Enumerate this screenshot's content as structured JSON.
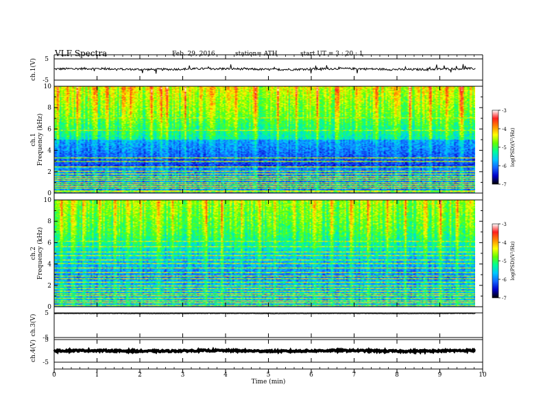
{
  "header": {
    "title": "VLF  Spectra",
    "date": "Feb. 29, 2016",
    "station": "station= ATH",
    "start": "start  UT  =   3  : 20 : 1"
  },
  "colors": {
    "trace": "#000000",
    "axis": "#000000",
    "colormap": [
      "#000000",
      "#0000c8",
      "#1464ff",
      "#00c8ff",
      "#00ff96",
      "#64ff00",
      "#ffff00",
      "#ff8c00",
      "#ff1e1e",
      "#ffffff"
    ]
  },
  "chart_data": [
    {
      "type": "line",
      "name": "ch1-waveform",
      "ylabel": "ch.1(V)",
      "yticks": [
        "5",
        "-5"
      ],
      "ylim": [
        -5,
        5
      ],
      "x_range": [
        0,
        9.83
      ],
      "baseline_v": 0.2,
      "noise_amplitude_v": 0.5,
      "spike_amplitude_v": 1.8
    },
    {
      "type": "heatmap",
      "name": "ch1-spectrogram",
      "ylabel_channel": "ch.1",
      "ylabel": "Frequency  (kHz)",
      "ylim": [
        0,
        10
      ],
      "yticks": [
        "0",
        "2",
        "4",
        "6",
        "8",
        "10"
      ],
      "x_range": [
        0,
        9.83
      ],
      "colorbar": {
        "label": "log(PSD)(V²/Hz)",
        "range": [
          -7,
          -3
        ],
        "ticks": [
          "-3",
          "-4",
          "-5",
          "-6",
          "-7"
        ]
      },
      "tone_lines_khz": [
        0.05,
        0.2,
        0.4,
        0.55,
        0.75,
        0.95,
        1.15,
        1.35,
        1.55,
        1.75,
        2.0,
        2.45,
        2.95,
        3.25,
        5.9,
        7.1
      ],
      "strong_spike_minutes": [
        0.08,
        0.3,
        0.52,
        0.95,
        1.22,
        1.6,
        1.78,
        2.25,
        2.5,
        2.62,
        3.05,
        3.42,
        3.68,
        4.22,
        4.7,
        5.2,
        5.62,
        6.12,
        6.6,
        7.05,
        7.5,
        7.95,
        8.3,
        8.78,
        9.15,
        9.5
      ]
    },
    {
      "type": "heatmap",
      "name": "ch2-spectrogram",
      "ylabel_channel": "ch.2",
      "ylabel": "Frequency  (kHz)",
      "ylim": [
        0,
        10
      ],
      "yticks": [
        "0",
        "2",
        "4",
        "6",
        "8",
        "10"
      ],
      "x_range": [
        0,
        9.83
      ],
      "colorbar": {
        "label": "log(PSD)(V²/Hz)",
        "range": [
          -7,
          -3
        ],
        "ticks": [
          "-3",
          "-4",
          "-5",
          "-6",
          "-7"
        ]
      },
      "tone_lines_khz": [
        0.1,
        0.3,
        0.5,
        0.75,
        1.0,
        1.2,
        1.45,
        1.7,
        1.95,
        2.3,
        2.6,
        2.85,
        3.2,
        3.6,
        4.0,
        4.4,
        4.75,
        5.1,
        5.6,
        6.1
      ],
      "strong_spike_minutes": [
        0.15,
        0.42,
        0.68,
        1.05,
        1.4,
        1.7,
        2.0,
        2.42,
        2.75,
        3.15,
        3.55,
        3.9,
        4.35,
        4.8,
        5.15,
        5.6,
        6.05,
        6.45,
        6.9,
        7.3,
        7.75,
        8.2,
        8.65,
        9.0,
        9.4,
        9.7
      ]
    },
    {
      "type": "line",
      "name": "ch3-waveform",
      "ylabel": "ch.3(V)",
      "yticks": [
        "5",
        "-5"
      ],
      "ylim": [
        -5,
        5
      ],
      "x_range": [
        0,
        9.83
      ],
      "baseline_v": 4.7,
      "noise_amplitude_v": 0.1,
      "spike_amplitude_v": 0
    },
    {
      "type": "line",
      "name": "ch4-waveform",
      "ylabel": "ch.4(V)",
      "yticks": [
        "5",
        "-5"
      ],
      "ylim": [
        -5,
        5
      ],
      "x_range": [
        0,
        9.83
      ],
      "baseline_v": 0.0,
      "noise_amplitude_v": 0.35,
      "spike_amplitude_v": 0
    }
  ],
  "time_axis": {
    "xlabel": "Time  (min)",
    "xlim": [
      0,
      10
    ],
    "ticks": [
      "0",
      "1",
      "2",
      "3",
      "4",
      "5",
      "6",
      "7",
      "8",
      "9",
      "10"
    ]
  }
}
